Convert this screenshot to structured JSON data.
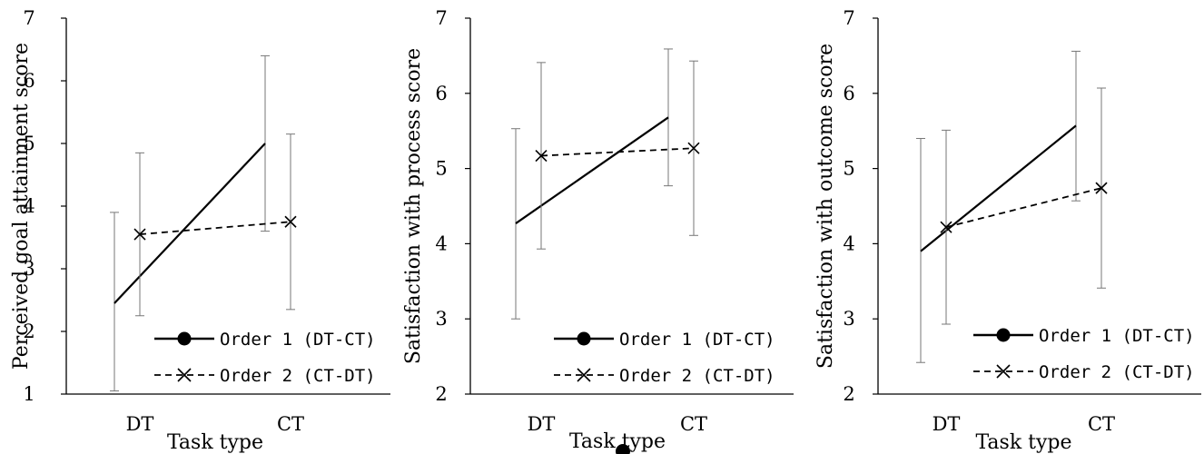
{
  "chart_data": [
    {
      "type": "line",
      "categories": [
        "DT",
        "CT"
      ],
      "xlabel": "Task type",
      "ylabel": "Perceived goal attainment score",
      "ylim": [
        1,
        7
      ],
      "yticks": [
        1,
        2,
        3,
        4,
        5,
        6,
        7
      ],
      "grid": false,
      "legend_position": "bottom-right",
      "series": [
        {
          "name": "Order 1 (DT-CT)",
          "style": "solid",
          "marker": "circle",
          "color": "#000000",
          "values": [
            2.45,
            5.0
          ],
          "error_low": [
            1.05,
            3.6
          ],
          "error_high": [
            3.9,
            6.4
          ]
        },
        {
          "name": "Order 2 (CT-DT)",
          "style": "dashed",
          "marker": "x",
          "color": "#000000",
          "values": [
            3.55,
            3.75
          ],
          "error_low": [
            2.25,
            2.35
          ],
          "error_high": [
            4.85,
            5.15
          ]
        }
      ]
    },
    {
      "type": "line",
      "categories": [
        "DT",
        "CT"
      ],
      "xlabel": "Task type",
      "ylabel": "Satisfaction with process score",
      "ylim": [
        2,
        7
      ],
      "yticks": [
        2,
        3,
        4,
        5,
        6,
        7
      ],
      "grid": false,
      "legend_position": "bottom-right",
      "series": [
        {
          "name": "Order 1 (DT-CT)",
          "style": "solid",
          "marker": "circle",
          "color": "#000000",
          "values": [
            4.27,
            5.68
          ],
          "error_low": [
            3.0,
            4.77
          ],
          "error_high": [
            5.53,
            6.59
          ]
        },
        {
          "name": "Order 2 (CT-DT)",
          "style": "dashed",
          "marker": "x",
          "color": "#000000",
          "values": [
            5.17,
            5.27
          ],
          "error_low": [
            3.93,
            4.11
          ],
          "error_high": [
            6.41,
            6.43
          ]
        }
      ]
    },
    {
      "type": "line",
      "categories": [
        "DT",
        "CT"
      ],
      "xlabel": "Task type",
      "ylabel": "Satisfaction with outcome score",
      "ylim": [
        2,
        7
      ],
      "yticks": [
        2,
        3,
        4,
        5,
        6,
        7
      ],
      "grid": false,
      "legend_position": "bottom-right",
      "series": [
        {
          "name": "Order 1 (DT-CT)",
          "style": "solid",
          "marker": "circle",
          "color": "#000000",
          "values": [
            3.9,
            5.57
          ],
          "error_low": [
            2.42,
            4.57
          ],
          "error_high": [
            5.4,
            6.56
          ]
        },
        {
          "name": "Order 2 (CT-DT)",
          "style": "dashed",
          "marker": "x",
          "color": "#000000",
          "values": [
            4.22,
            4.74
          ],
          "error_low": [
            2.93,
            3.41
          ],
          "error_high": [
            5.51,
            6.07
          ]
        }
      ]
    }
  ]
}
